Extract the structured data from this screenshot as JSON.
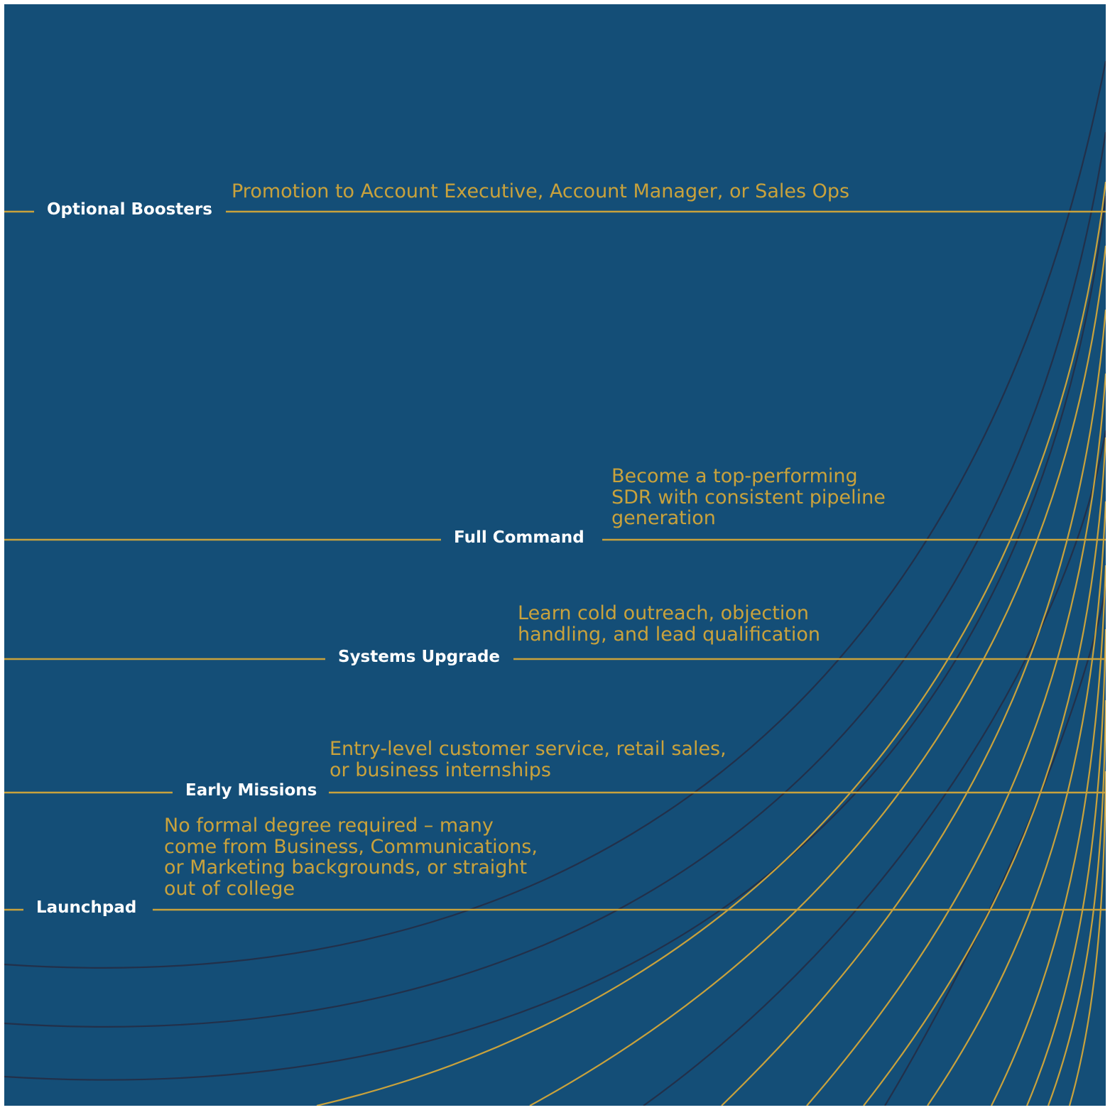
{
  "colors": {
    "background": "#144e77",
    "gold": "#c9a23c",
    "dark_line": "#22304a",
    "label_text": "#ffffff"
  },
  "stages": [
    {
      "label": "Optional Boosters",
      "description": "Promotion to Account Executive, Account Manager, or Sales Ops"
    },
    {
      "label": "Full Command",
      "description": "Become a top-performing\nSDR with consistent pipeline\ngeneration"
    },
    {
      "label": "Systems Upgrade",
      "description": "Learn cold outreach, objection\nhandling, and lead qualification"
    },
    {
      "label": "Early Missions",
      "description": "Entry-level customer service, retail sales,\nor business internships"
    },
    {
      "label": "Launchpad",
      "description": "No formal degree required – many\ncome from Business, Communications,\nor Marketing backgrounds, or straight\nout of college"
    }
  ]
}
